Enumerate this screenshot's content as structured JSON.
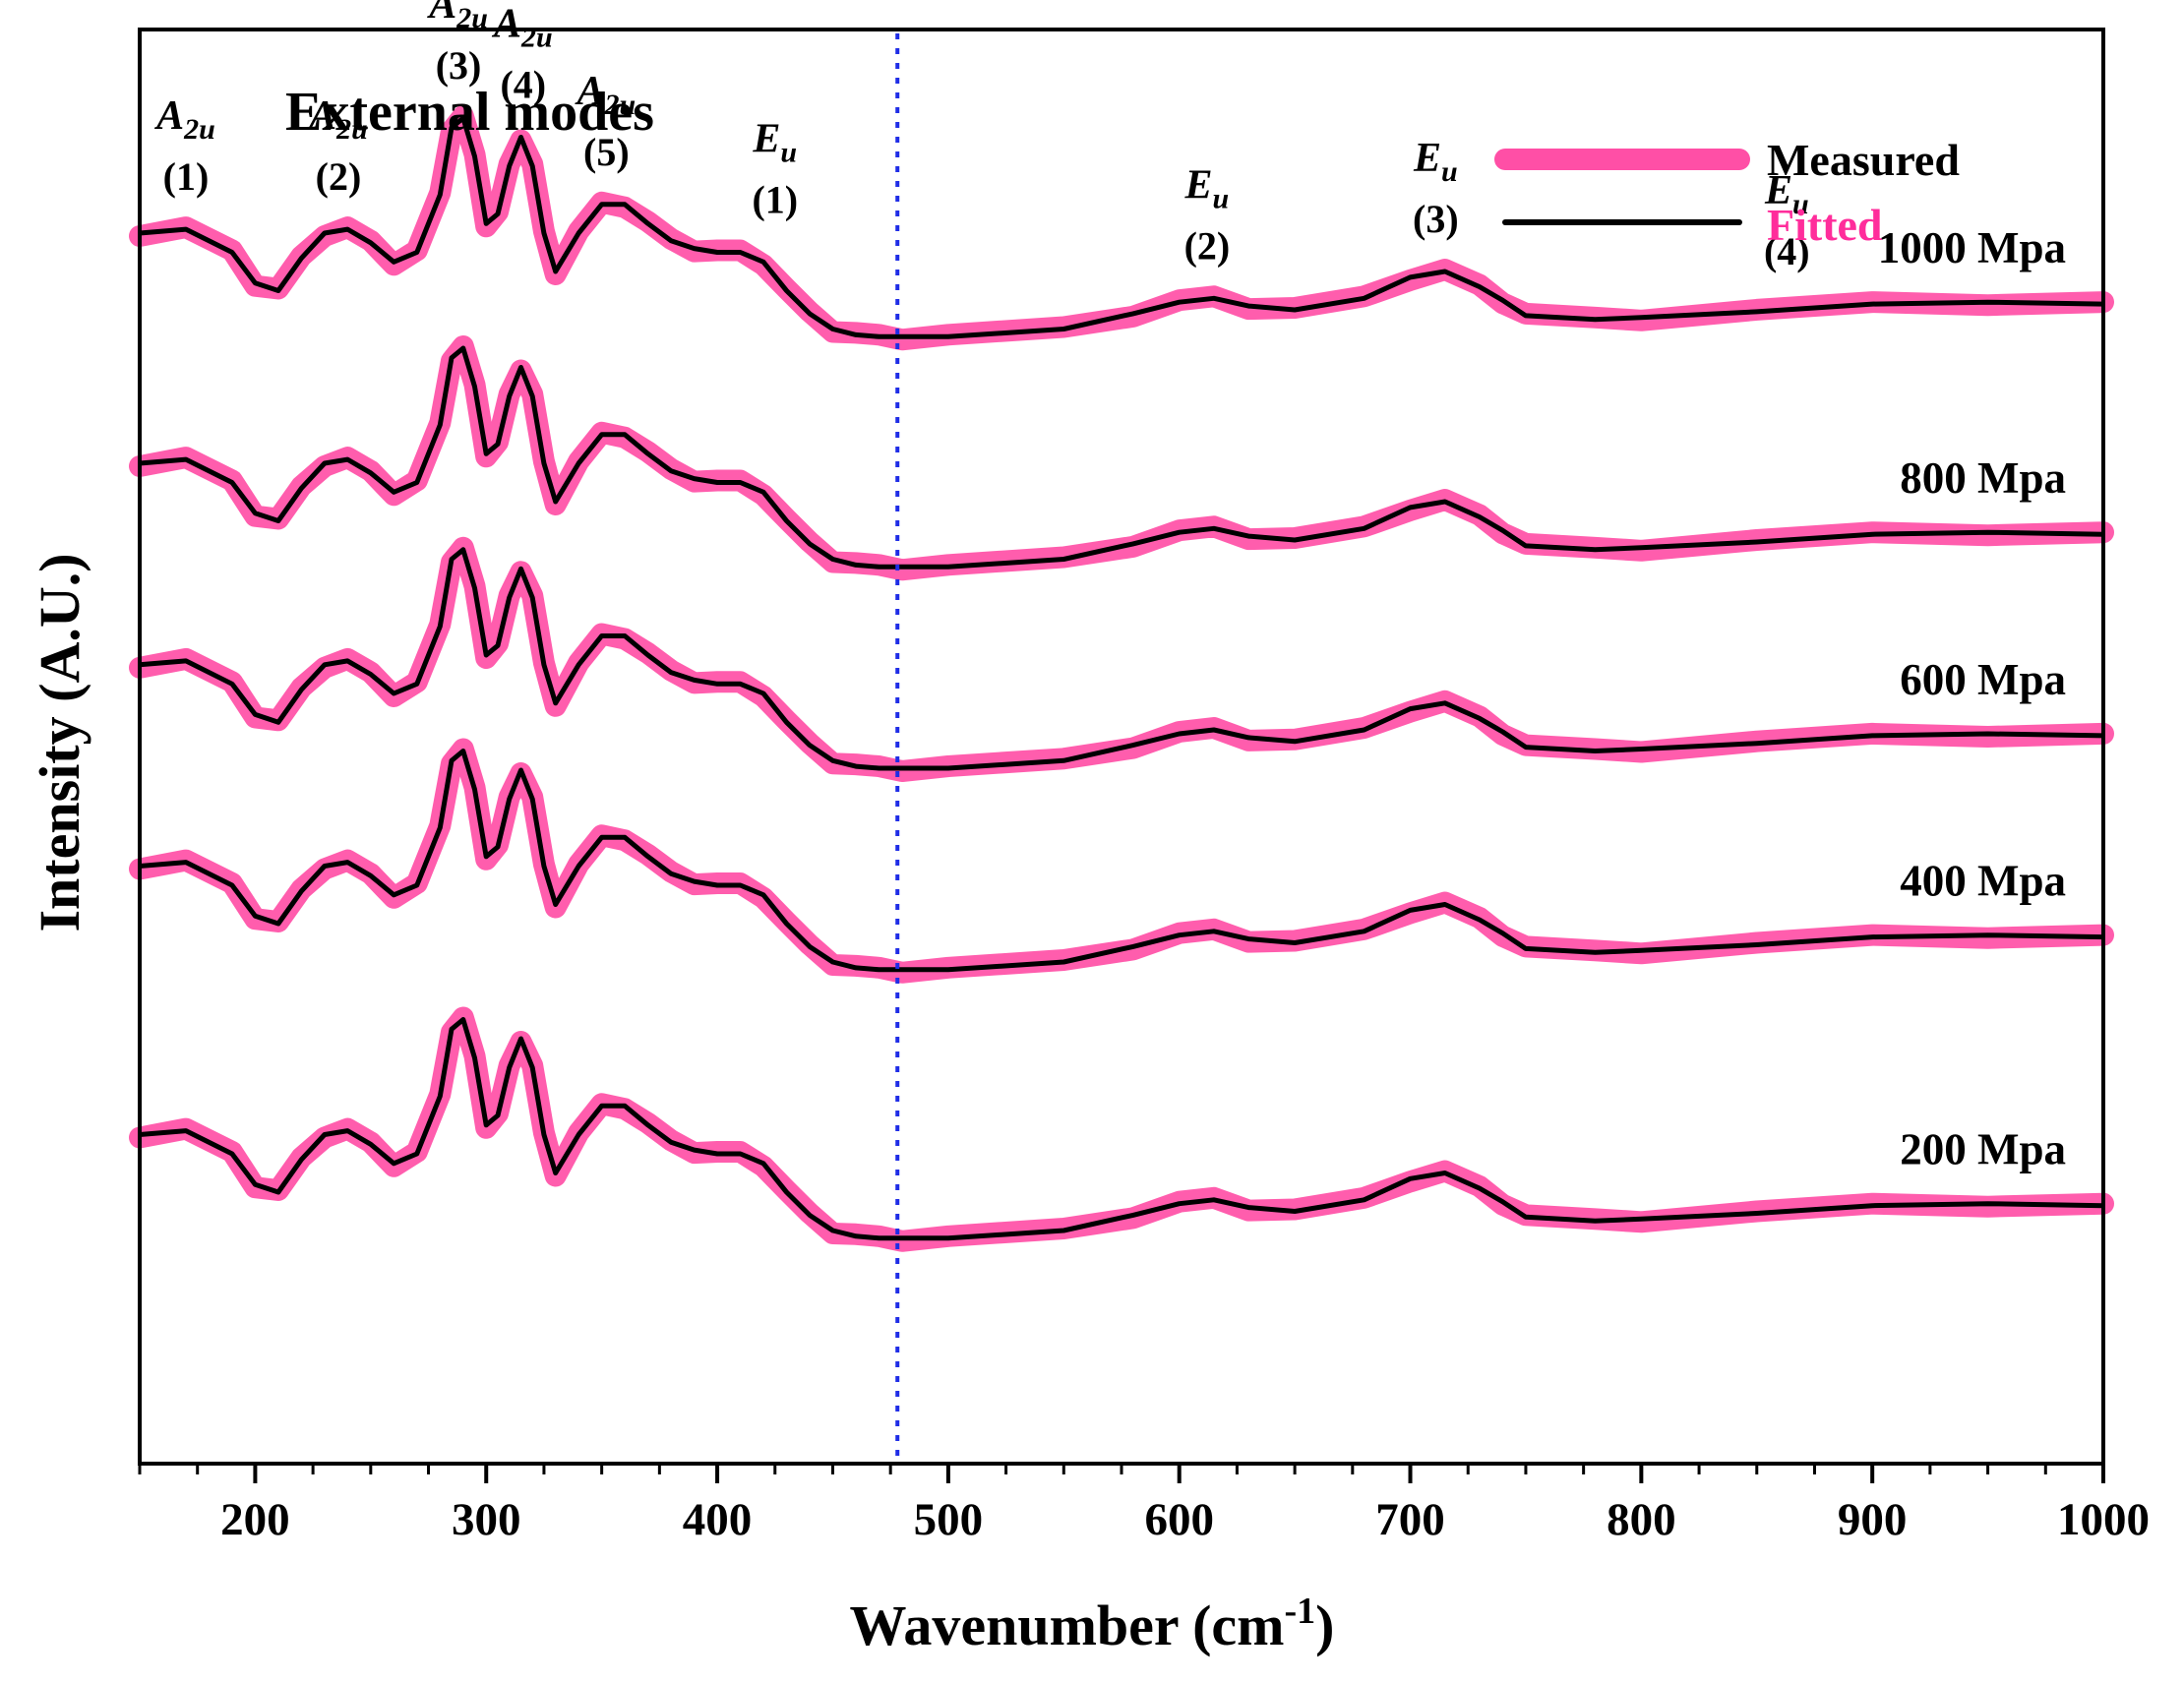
{
  "chart_data": {
    "type": "line",
    "title": "External modes",
    "xlabel": "Wavenumber (cm",
    "xlabel_sup": "-1",
    "xlabel_end": ")",
    "ylabel": "Intensity (A.U.)",
    "xlim": [
      150,
      1000
    ],
    "x_ticks": [
      200,
      300,
      400,
      500,
      600,
      700,
      800,
      900,
      1000
    ],
    "grid": false,
    "y_ticks_shown": false,
    "reference_line": {
      "x": 478,
      "color": "#1f2de6",
      "style": "dotted"
    },
    "legend": {
      "position": "top-right",
      "entries": [
        {
          "label": "Measured",
          "color": "#ff4fa6",
          "label_color": "#000000"
        },
        {
          "label": "Fitted",
          "color": "#000000",
          "label_color": "#ff2d9b"
        }
      ]
    },
    "colors": {
      "measured": "#ff4fa6",
      "fitted": "#000000"
    },
    "annotations": [
      {
        "symbol": "A",
        "sub": "2u",
        "number": "(1)",
        "x": 170
      },
      {
        "symbol": "A",
        "sub": "2u",
        "number": "(2)",
        "x": 236
      },
      {
        "symbol": "A",
        "sub": "2u",
        "number": "(3)",
        "x": 288
      },
      {
        "symbol": "A",
        "sub": "2u",
        "number": "(4)",
        "x": 316
      },
      {
        "symbol": "A",
        "sub": "2u",
        "number": "(5)",
        "x": 352
      },
      {
        "symbol": "E",
        "sub": "u",
        "number": "(1)",
        "x": 425
      },
      {
        "symbol": "E",
        "sub": "u",
        "number": "(2)",
        "x": 612
      },
      {
        "symbol": "E",
        "sub": "u",
        "number": "(3)",
        "x": 711
      },
      {
        "symbol": "E",
        "sub": "u",
        "number": "(4)",
        "x": 863
      }
    ],
    "profile_x": [
      150,
      170,
      190,
      200,
      210,
      220,
      230,
      240,
      250,
      260,
      270,
      280,
      285,
      290,
      295,
      300,
      305,
      310,
      315,
      320,
      325,
      330,
      340,
      350,
      360,
      370,
      380,
      390,
      400,
      410,
      420,
      430,
      440,
      450,
      460,
      470,
      480,
      500,
      550,
      580,
      600,
      615,
      630,
      650,
      680,
      700,
      715,
      730,
      740,
      750,
      780,
      800,
      850,
      900,
      950,
      1000
    ],
    "series": [
      {
        "name": "1000 Mpa",
        "offset": 5.0,
        "values": [
          0.4,
          0.42,
          0.3,
          0.14,
          0.1,
          0.27,
          0.4,
          0.42,
          0.35,
          0.25,
          0.3,
          0.6,
          0.95,
          1.0,
          0.8,
          0.45,
          0.5,
          0.75,
          0.9,
          0.75,
          0.4,
          0.2,
          0.4,
          0.55,
          0.55,
          0.45,
          0.36,
          0.32,
          0.3,
          0.3,
          0.25,
          0.1,
          -0.02,
          -0.1,
          -0.13,
          -0.14,
          -0.14,
          -0.14,
          -0.1,
          -0.02,
          0.04,
          0.06,
          0.02,
          0.0,
          0.06,
          0.17,
          0.2,
          0.12,
          0.05,
          -0.03,
          -0.05,
          -0.04,
          -0.01,
          0.03,
          0.04,
          0.03
        ]
      },
      {
        "name": "800 Mpa",
        "offset": 3.8,
        "values": [
          0.4,
          0.42,
          0.3,
          0.14,
          0.1,
          0.27,
          0.4,
          0.42,
          0.35,
          0.25,
          0.3,
          0.6,
          0.95,
          1.0,
          0.8,
          0.45,
          0.5,
          0.75,
          0.9,
          0.75,
          0.4,
          0.2,
          0.4,
          0.55,
          0.55,
          0.45,
          0.36,
          0.32,
          0.3,
          0.3,
          0.25,
          0.1,
          -0.02,
          -0.1,
          -0.13,
          -0.14,
          -0.14,
          -0.14,
          -0.1,
          -0.02,
          0.04,
          0.06,
          0.02,
          0.0,
          0.06,
          0.17,
          0.2,
          0.12,
          0.05,
          -0.03,
          -0.05,
          -0.04,
          -0.01,
          0.03,
          0.04,
          0.03
        ]
      },
      {
        "name": "600 Mpa",
        "offset": 2.75,
        "values": [
          0.4,
          0.42,
          0.3,
          0.14,
          0.1,
          0.27,
          0.4,
          0.42,
          0.35,
          0.25,
          0.3,
          0.6,
          0.95,
          1.0,
          0.8,
          0.45,
          0.5,
          0.75,
          0.9,
          0.75,
          0.4,
          0.2,
          0.4,
          0.55,
          0.55,
          0.45,
          0.36,
          0.32,
          0.3,
          0.3,
          0.25,
          0.1,
          -0.02,
          -0.1,
          -0.13,
          -0.14,
          -0.14,
          -0.14,
          -0.1,
          -0.02,
          0.04,
          0.06,
          0.02,
          0.0,
          0.06,
          0.17,
          0.2,
          0.12,
          0.05,
          -0.03,
          -0.05,
          -0.04,
          -0.01,
          0.03,
          0.04,
          0.03
        ]
      },
      {
        "name": "400 Mpa",
        "offset": 1.7,
        "values": [
          0.4,
          0.42,
          0.3,
          0.14,
          0.1,
          0.27,
          0.4,
          0.42,
          0.35,
          0.25,
          0.3,
          0.6,
          0.95,
          1.0,
          0.8,
          0.45,
          0.5,
          0.75,
          0.9,
          0.75,
          0.4,
          0.2,
          0.4,
          0.55,
          0.55,
          0.45,
          0.36,
          0.32,
          0.3,
          0.3,
          0.25,
          0.1,
          -0.02,
          -0.1,
          -0.13,
          -0.14,
          -0.14,
          -0.14,
          -0.1,
          -0.02,
          0.04,
          0.06,
          0.02,
          0.0,
          0.06,
          0.17,
          0.2,
          0.12,
          0.05,
          -0.03,
          -0.05,
          -0.04,
          -0.01,
          0.03,
          0.04,
          0.03
        ]
      },
      {
        "name": "200 Mpa",
        "offset": 0.3,
        "values": [
          0.4,
          0.42,
          0.3,
          0.14,
          0.1,
          0.27,
          0.4,
          0.42,
          0.35,
          0.25,
          0.3,
          0.6,
          0.95,
          1.0,
          0.8,
          0.45,
          0.5,
          0.75,
          0.9,
          0.75,
          0.4,
          0.2,
          0.4,
          0.55,
          0.55,
          0.45,
          0.36,
          0.32,
          0.3,
          0.3,
          0.25,
          0.1,
          -0.02,
          -0.1,
          -0.13,
          -0.14,
          -0.14,
          -0.14,
          -0.1,
          -0.02,
          0.04,
          0.06,
          0.02,
          0.0,
          0.06,
          0.17,
          0.2,
          0.12,
          0.05,
          -0.03,
          -0.05,
          -0.04,
          -0.01,
          0.03,
          0.04,
          0.03
        ]
      }
    ]
  }
}
